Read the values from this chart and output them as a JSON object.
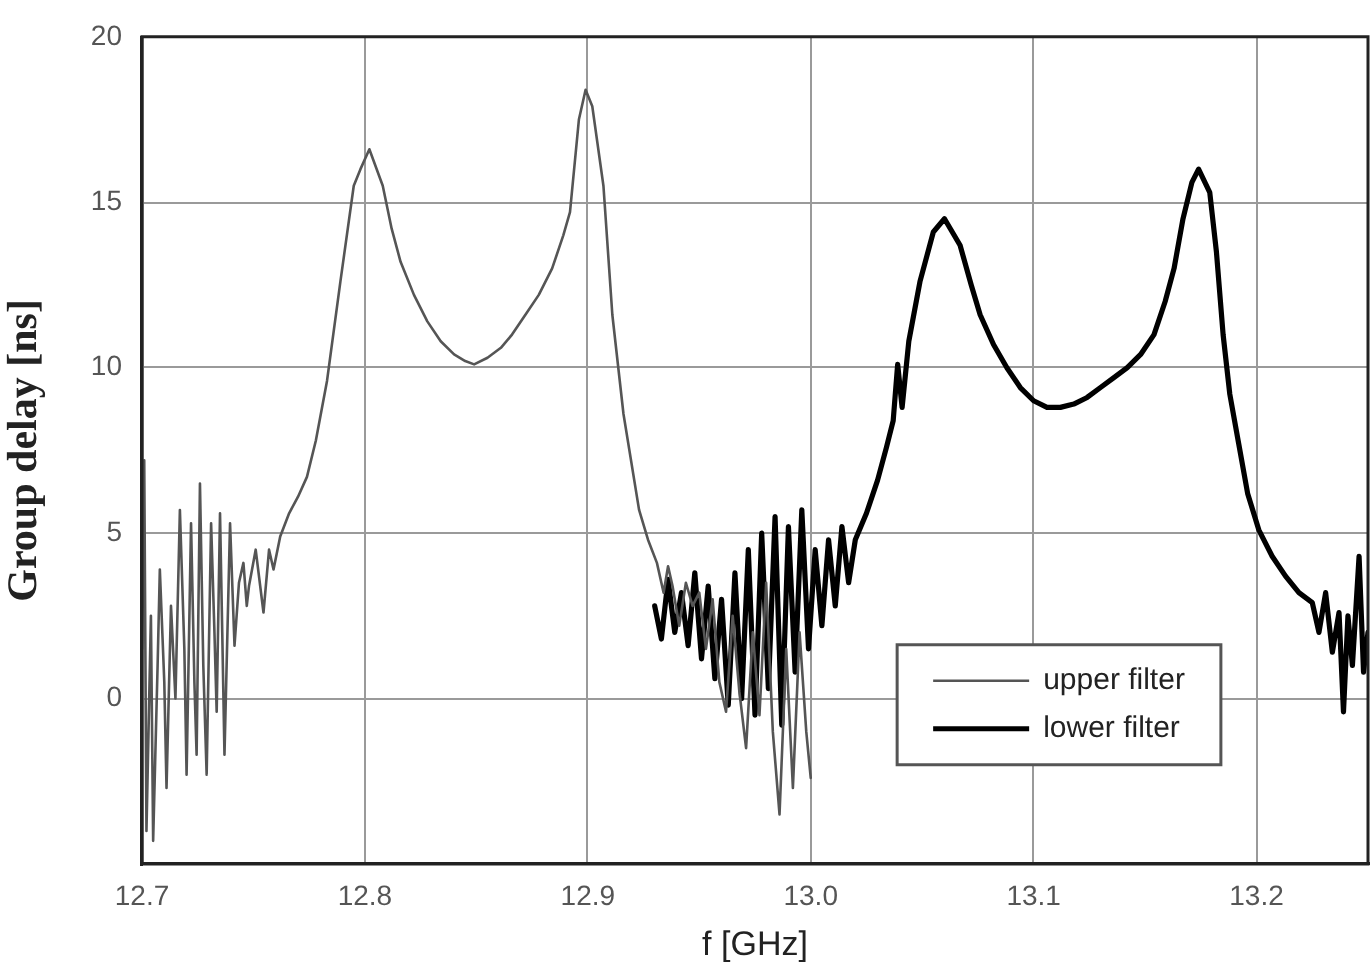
{
  "chart_data": {
    "type": "line",
    "xlabel": "f [GHz]",
    "ylabel": "Group delay [ns]",
    "xlim": [
      12.7,
      13.25
    ],
    "ylim": [
      -5,
      20
    ],
    "xticks": [
      12.7,
      12.8,
      12.9,
      {
        "value": 13,
        "label": "13.0"
      },
      13.1,
      13.2
    ],
    "yticks": [
      0,
      5,
      10,
      15,
      20
    ],
    "grid": true,
    "legend": "bottom right",
    "series": [
      {
        "name": "upper filter",
        "color": "#555555",
        "x": [
          12.7,
          12.701,
          12.702,
          12.704,
          12.705,
          12.707,
          12.708,
          12.71,
          12.711,
          12.713,
          12.715,
          12.717,
          12.719,
          12.72,
          12.722,
          12.7235,
          12.7245,
          12.726,
          12.7275,
          12.729,
          12.731,
          12.7325,
          12.7335,
          12.735,
          12.736,
          12.737,
          12.7395,
          12.7415,
          12.7435,
          12.7455,
          12.747,
          12.748,
          12.751,
          12.7545,
          12.757,
          12.759,
          12.762,
          12.766,
          12.77,
          12.774,
          12.778,
          12.783,
          12.789,
          12.795,
          12.798,
          12.802,
          12.808,
          12.812,
          12.816,
          12.822,
          12.828,
          12.834,
          12.84,
          12.845,
          12.849,
          12.855,
          12.861,
          12.866,
          12.872,
          12.878,
          12.884,
          12.889,
          12.892,
          12.896,
          12.899,
          12.902,
          12.907,
          12.911,
          12.916,
          12.923,
          12.927,
          12.931,
          12.934,
          12.936,
          12.938,
          12.941,
          12.944,
          12.947,
          12.95,
          12.953,
          12.956,
          12.959,
          12.962,
          12.965,
          12.968,
          12.971,
          12.974,
          12.977,
          12.98,
          12.983,
          12.986,
          12.989,
          12.992,
          12.995,
          12.998,
          13.0
        ],
        "values": [
          1.5,
          7.2,
          -4.0,
          2.5,
          -4.3,
          1.0,
          3.9,
          0.5,
          -2.7,
          2.8,
          0.0,
          5.7,
          1.5,
          -2.3,
          5.3,
          0.5,
          -1.7,
          6.5,
          1.0,
          -2.3,
          5.3,
          2.0,
          -0.4,
          5.6,
          2.0,
          -1.7,
          5.3,
          1.6,
          3.5,
          4.1,
          2.8,
          3.4,
          4.5,
          2.6,
          4.5,
          3.9,
          4.9,
          5.6,
          6.1,
          6.7,
          7.8,
          9.6,
          12.6,
          15.5,
          16.0,
          16.6,
          15.5,
          14.2,
          13.2,
          12.2,
          11.4,
          10.8,
          10.4,
          10.2,
          10.1,
          10.3,
          10.6,
          11.0,
          11.6,
          12.2,
          13.0,
          14.0,
          14.7,
          17.5,
          18.4,
          17.9,
          15.5,
          11.6,
          8.6,
          5.7,
          4.8,
          4.1,
          3.2,
          4.0,
          3.4,
          2.2,
          3.5,
          2.8,
          3.2,
          1.5,
          3.0,
          0.5,
          -0.4,
          2.5,
          0.2,
          -1.5,
          2.0,
          -0.5,
          3.5,
          -1.0,
          -3.5,
          1.5,
          -2.7,
          2.0,
          -1.0,
          -2.4
        ]
      },
      {
        "name": "lower filter",
        "color": "#000000",
        "x": [
          12.93,
          12.933,
          12.936,
          12.939,
          12.942,
          12.945,
          12.948,
          12.951,
          12.954,
          12.957,
          12.96,
          12.963,
          12.966,
          12.969,
          12.972,
          12.975,
          12.978,
          12.981,
          12.984,
          12.987,
          12.99,
          12.993,
          12.996,
          12.999,
          13.002,
          13.005,
          13.008,
          13.011,
          13.014,
          13.017,
          13.02,
          13.025,
          13.03,
          13.034,
          13.037,
          13.039,
          13.041,
          13.044,
          13.049,
          13.055,
          13.06,
          13.067,
          13.072,
          13.076,
          13.082,
          13.088,
          13.094,
          13.1,
          13.106,
          13.112,
          13.118,
          13.124,
          13.13,
          13.136,
          13.142,
          13.148,
          13.154,
          13.159,
          13.163,
          13.167,
          13.171,
          13.174,
          13.179,
          13.182,
          13.185,
          13.188,
          13.192,
          13.196,
          13.201,
          13.207,
          13.213,
          13.219,
          13.225,
          13.228,
          13.231,
          13.234,
          13.237,
          13.239,
          13.241,
          13.243,
          13.246,
          13.248,
          13.25
        ],
        "values": [
          2.8,
          1.8,
          3.6,
          2.0,
          3.2,
          1.6,
          3.8,
          1.2,
          3.4,
          0.6,
          3.0,
          -0.2,
          3.8,
          0.0,
          4.5,
          -0.5,
          5.0,
          0.3,
          5.5,
          -0.8,
          5.2,
          0.8,
          5.7,
          1.5,
          4.5,
          2.2,
          4.8,
          2.8,
          5.2,
          3.5,
          4.8,
          5.6,
          6.6,
          7.6,
          8.4,
          10.1,
          8.8,
          10.8,
          12.6,
          14.1,
          14.5,
          13.7,
          12.5,
          11.6,
          10.7,
          10.0,
          9.4,
          9.0,
          8.8,
          8.8,
          8.9,
          9.1,
          9.4,
          9.7,
          10.0,
          10.4,
          11.0,
          12.0,
          13.0,
          14.5,
          15.6,
          16.0,
          15.3,
          13.5,
          11.0,
          9.2,
          7.7,
          6.2,
          5.1,
          4.3,
          3.7,
          3.2,
          2.9,
          2.0,
          3.2,
          1.4,
          2.6,
          -0.4,
          2.5,
          1.0,
          4.3,
          0.8,
          2.0
        ]
      }
    ]
  }
}
